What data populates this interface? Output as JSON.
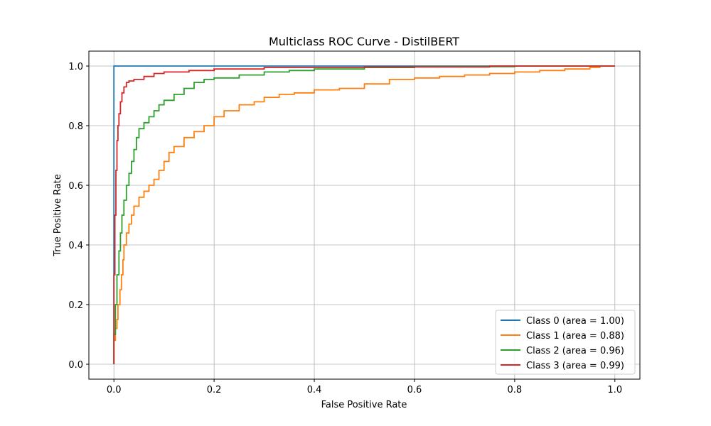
{
  "chart_data": {
    "type": "line",
    "title": "Multiclass ROC Curve - DistilBERT",
    "xlabel": "False Positive Rate",
    "ylabel": "True Positive Rate",
    "xlim": [
      -0.05,
      1.05
    ],
    "ylim": [
      -0.05,
      1.05
    ],
    "xticks": [
      0.0,
      0.2,
      0.4,
      0.6,
      0.8,
      1.0
    ],
    "yticks": [
      0.0,
      0.2,
      0.4,
      0.6,
      0.8,
      1.0
    ],
    "xtick_labels": [
      "0.0",
      "0.2",
      "0.4",
      "0.6",
      "0.8",
      "1.0"
    ],
    "ytick_labels": [
      "0.0",
      "0.2",
      "0.4",
      "0.6",
      "0.8",
      "1.0"
    ],
    "grid": true,
    "legend_position": "lower-right",
    "series": [
      {
        "name": "Class 0 (area = 1.00)",
        "color": "#1f77b4",
        "points": [
          [
            0.0,
            0.0
          ],
          [
            0.0,
            1.0
          ],
          [
            1.0,
            1.0
          ]
        ]
      },
      {
        "name": "Class 1 (area = 0.88)",
        "color": "#ff7f0e",
        "points": [
          [
            0.0,
            0.0
          ],
          [
            0.0,
            0.08
          ],
          [
            0.003,
            0.12
          ],
          [
            0.006,
            0.15
          ],
          [
            0.008,
            0.2
          ],
          [
            0.012,
            0.25
          ],
          [
            0.015,
            0.3
          ],
          [
            0.018,
            0.35
          ],
          [
            0.02,
            0.4
          ],
          [
            0.025,
            0.44
          ],
          [
            0.03,
            0.47
          ],
          [
            0.035,
            0.5
          ],
          [
            0.04,
            0.53
          ],
          [
            0.05,
            0.56
          ],
          [
            0.06,
            0.58
          ],
          [
            0.07,
            0.6
          ],
          [
            0.08,
            0.62
          ],
          [
            0.09,
            0.65
          ],
          [
            0.1,
            0.68
          ],
          [
            0.11,
            0.71
          ],
          [
            0.12,
            0.73
          ],
          [
            0.14,
            0.76
          ],
          [
            0.16,
            0.78
          ],
          [
            0.18,
            0.8
          ],
          [
            0.2,
            0.83
          ],
          [
            0.22,
            0.85
          ],
          [
            0.25,
            0.87
          ],
          [
            0.28,
            0.88
          ],
          [
            0.3,
            0.895
          ],
          [
            0.33,
            0.905
          ],
          [
            0.36,
            0.91
          ],
          [
            0.4,
            0.92
          ],
          [
            0.45,
            0.925
          ],
          [
            0.5,
            0.94
          ],
          [
            0.55,
            0.955
          ],
          [
            0.6,
            0.96
          ],
          [
            0.65,
            0.965
          ],
          [
            0.7,
            0.97
          ],
          [
            0.75,
            0.975
          ],
          [
            0.8,
            0.98
          ],
          [
            0.85,
            0.985
          ],
          [
            0.9,
            0.99
          ],
          [
            0.95,
            0.995
          ],
          [
            0.97,
            1.0
          ],
          [
            1.0,
            1.0
          ]
        ]
      },
      {
        "name": "Class 2 (area = 0.96)",
        "color": "#2ca02c",
        "points": [
          [
            0.0,
            0.0
          ],
          [
            0.0,
            0.1
          ],
          [
            0.003,
            0.2
          ],
          [
            0.006,
            0.3
          ],
          [
            0.01,
            0.38
          ],
          [
            0.013,
            0.44
          ],
          [
            0.016,
            0.5
          ],
          [
            0.02,
            0.55
          ],
          [
            0.025,
            0.6
          ],
          [
            0.03,
            0.64
          ],
          [
            0.035,
            0.68
          ],
          [
            0.04,
            0.72
          ],
          [
            0.045,
            0.76
          ],
          [
            0.05,
            0.79
          ],
          [
            0.06,
            0.81
          ],
          [
            0.07,
            0.83
          ],
          [
            0.08,
            0.85
          ],
          [
            0.09,
            0.87
          ],
          [
            0.1,
            0.885
          ],
          [
            0.12,
            0.905
          ],
          [
            0.14,
            0.925
          ],
          [
            0.16,
            0.945
          ],
          [
            0.18,
            0.955
          ],
          [
            0.2,
            0.96
          ],
          [
            0.25,
            0.97
          ],
          [
            0.3,
            0.98
          ],
          [
            0.35,
            0.985
          ],
          [
            0.4,
            0.99
          ],
          [
            0.5,
            0.995
          ],
          [
            0.6,
            0.998
          ],
          [
            0.8,
            1.0
          ],
          [
            1.0,
            1.0
          ]
        ]
      },
      {
        "name": "Class 3 (area = 0.99)",
        "color": "#d62728",
        "points": [
          [
            0.0,
            0.0
          ],
          [
            0.0,
            0.3
          ],
          [
            0.002,
            0.5
          ],
          [
            0.004,
            0.65
          ],
          [
            0.006,
            0.75
          ],
          [
            0.008,
            0.8
          ],
          [
            0.01,
            0.84
          ],
          [
            0.013,
            0.88
          ],
          [
            0.016,
            0.91
          ],
          [
            0.02,
            0.93
          ],
          [
            0.025,
            0.945
          ],
          [
            0.03,
            0.95
          ],
          [
            0.04,
            0.955
          ],
          [
            0.06,
            0.965
          ],
          [
            0.08,
            0.975
          ],
          [
            0.1,
            0.98
          ],
          [
            0.15,
            0.985
          ],
          [
            0.2,
            0.99
          ],
          [
            0.3,
            0.995
          ],
          [
            0.5,
            0.997
          ],
          [
            0.75,
            1.0
          ],
          [
            1.0,
            1.0
          ]
        ]
      }
    ]
  }
}
